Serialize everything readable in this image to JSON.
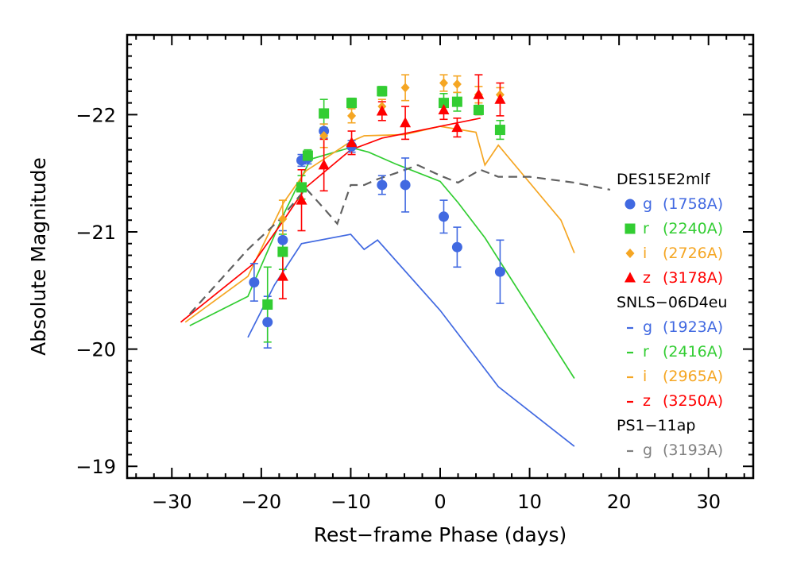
{
  "chart_data": {
    "type": "scatter",
    "xlabel": "Rest−frame Phase (days)",
    "ylabel": "Absolute Magnitude",
    "xlim": [
      -35,
      35
    ],
    "ylim": [
      -18.9,
      -22.68
    ],
    "y_inverted": true,
    "x_ticks": [
      -30,
      -20,
      -10,
      0,
      10,
      20,
      30
    ],
    "y_ticks": [
      -19,
      -20,
      -21,
      -22
    ],
    "x_tick_labels": [
      "−30",
      "−20",
      "−10",
      "0",
      "10",
      "20",
      "30"
    ],
    "y_tick_labels": [
      "−19",
      "−20",
      "−21",
      "−22"
    ],
    "grid": false,
    "legend_position": "right",
    "legend_groups": [
      {
        "title": "DES15E2mlf",
        "entries": [
          {
            "label": "g",
            "wavelength": "(1758A)",
            "color": "#4169e1",
            "marker": "circle"
          },
          {
            "label": "r",
            "wavelength": "(2240A)",
            "color": "#32cd32",
            "marker": "square"
          },
          {
            "label": "i",
            "wavelength": "(2726A)",
            "color": "#f5a623",
            "marker": "diamond"
          },
          {
            "label": "z",
            "wavelength": "(3178A)",
            "color": "#ff0000",
            "marker": "triangle"
          }
        ]
      },
      {
        "title": "SNLS−06D4eu",
        "entries": [
          {
            "label": "g",
            "wavelength": "(1923A)",
            "color": "#4169e1",
            "marker": "line"
          },
          {
            "label": "r",
            "wavelength": "(2416A)",
            "color": "#32cd32",
            "marker": "line"
          },
          {
            "label": "i",
            "wavelength": "(2965A)",
            "color": "#f5a623",
            "marker": "line"
          },
          {
            "label": "z",
            "wavelength": "(3250A)",
            "color": "#ff0000",
            "marker": "line"
          }
        ]
      },
      {
        "title": "PS1−11ap",
        "entries": [
          {
            "label": "g",
            "wavelength": "(3193A)",
            "color": "#808080",
            "marker": "dash"
          }
        ]
      }
    ],
    "points": [
      {
        "band": "g",
        "color": "#4169e1",
        "marker": "circle",
        "data": [
          {
            "x": -20.8,
            "y": -20.57,
            "err": 0.16
          },
          {
            "x": -19.3,
            "y": -20.23,
            "err": 0.22
          },
          {
            "x": -17.6,
            "y": -20.93,
            "err": 0.08
          },
          {
            "x": -15.5,
            "y": -21.61,
            "err": 0.05
          },
          {
            "x": -14.8,
            "y": -21.63,
            "err": 0.05
          },
          {
            "x": -13.0,
            "y": -21.86,
            "err": 0.06
          },
          {
            "x": -9.9,
            "y": -21.73,
            "err": 0.05
          },
          {
            "x": -6.5,
            "y": -21.4,
            "err": 0.08
          },
          {
            "x": -3.9,
            "y": -21.4,
            "err": 0.23
          },
          {
            "x": 0.4,
            "y": -21.13,
            "err": 0.14
          },
          {
            "x": 1.9,
            "y": -20.87,
            "err": 0.17
          },
          {
            "x": 6.7,
            "y": -20.66,
            "err": 0.27
          }
        ]
      },
      {
        "band": "r",
        "color": "#32cd32",
        "marker": "square",
        "data": [
          {
            "x": -19.3,
            "y": -20.38,
            "err": 0.32
          },
          {
            "x": -17.6,
            "y": -20.83,
            "err": 0.15
          },
          {
            "x": -15.5,
            "y": -21.38,
            "err": 0.1
          },
          {
            "x": -14.8,
            "y": -21.65,
            "err": 0.05
          },
          {
            "x": -13.0,
            "y": -22.01,
            "err": 0.12
          },
          {
            "x": -9.9,
            "y": -22.1,
            "err": 0.04
          },
          {
            "x": -6.5,
            "y": -22.2,
            "err": 0.04
          },
          {
            "x": 0.4,
            "y": -22.1,
            "err": 0.08
          },
          {
            "x": 1.9,
            "y": -22.11,
            "err": 0.08
          },
          {
            "x": 4.3,
            "y": -22.04,
            "err": 0.04
          },
          {
            "x": 6.7,
            "y": -21.87,
            "err": 0.08
          }
        ]
      },
      {
        "band": "i",
        "color": "#f5a623",
        "marker": "diamond",
        "data": [
          {
            "x": -17.6,
            "y": -21.11,
            "err": 0.16
          },
          {
            "x": -13.0,
            "y": -21.82,
            "err": 0.1
          },
          {
            "x": -9.9,
            "y": -21.99,
            "err": 0.06
          },
          {
            "x": -6.5,
            "y": -22.07,
            "err": 0.06
          },
          {
            "x": -3.9,
            "y": -22.23,
            "err": 0.11
          },
          {
            "x": 0.4,
            "y": -22.27,
            "err": 0.07
          },
          {
            "x": 1.9,
            "y": -22.26,
            "err": 0.07
          },
          {
            "x": 4.3,
            "y": -22.17,
            "err": 0.07
          },
          {
            "x": 6.7,
            "y": -22.17,
            "err": 0.06
          }
        ]
      },
      {
        "band": "z",
        "color": "#ff0000",
        "marker": "triangle",
        "data": [
          {
            "x": -17.6,
            "y": -20.62,
            "err": 0.19
          },
          {
            "x": -15.5,
            "y": -21.27,
            "err": 0.26
          },
          {
            "x": -13.0,
            "y": -21.57,
            "err": 0.22
          },
          {
            "x": -9.9,
            "y": -21.76,
            "err": 0.1
          },
          {
            "x": -6.5,
            "y": -22.03,
            "err": 0.08
          },
          {
            "x": -3.9,
            "y": -21.93,
            "err": 0.14
          },
          {
            "x": 0.4,
            "y": -22.04,
            "err": 0.08
          },
          {
            "x": 1.9,
            "y": -21.89,
            "err": 0.08
          },
          {
            "x": 4.3,
            "y": -22.17,
            "err": 0.17
          },
          {
            "x": 6.7,
            "y": -22.13,
            "err": 0.14
          }
        ]
      }
    ],
    "lines": [
      {
        "name": "SNLS−06D4eu g",
        "color": "#4169e1",
        "dash": false,
        "x": [
          -21.5,
          -18.5,
          -15.5,
          -10.0,
          -8.5,
          -7.0,
          0.0,
          2.0,
          6.5,
          15.0
        ],
        "y": [
          -20.1,
          -20.55,
          -20.9,
          -20.98,
          -20.85,
          -20.93,
          -20.33,
          -20.13,
          -19.68,
          -19.17
        ]
      },
      {
        "name": "SNLS−06D4eu r",
        "color": "#32cd32",
        "dash": false,
        "x": [
          -28.0,
          -21.5,
          -17.5,
          -14.5,
          -10.0,
          -8.0,
          -5.0,
          0.0,
          2.0,
          5.0,
          15.0
        ],
        "y": [
          -20.2,
          -20.45,
          -21.15,
          -21.62,
          -21.72,
          -21.68,
          -21.58,
          -21.43,
          -21.25,
          -20.95,
          -19.75
        ]
      },
      {
        "name": "SNLS−06D4eu i",
        "color": "#f5a623",
        "dash": false,
        "x": [
          -28.5,
          -21.5,
          -17.5,
          -15.0,
          -10.0,
          -8.5,
          -4.0,
          0.0,
          4.0,
          5.0,
          6.5,
          13.5,
          15.0
        ],
        "y": [
          -20.23,
          -20.62,
          -21.25,
          -21.52,
          -21.77,
          -21.82,
          -21.83,
          -21.9,
          -21.85,
          -21.57,
          -21.74,
          -21.1,
          -20.82
        ]
      },
      {
        "name": "SNLS−06D4eu z",
        "color": "#ff0000",
        "dash": false,
        "x": [
          -29.0,
          -21.0,
          -17.5,
          -15.0,
          -10.0,
          -6.5,
          0.0,
          4.5
        ],
        "y": [
          -20.23,
          -20.72,
          -21.1,
          -21.38,
          -21.7,
          -21.8,
          -21.9,
          -21.97
        ]
      },
      {
        "name": "PS1−11ap g",
        "color": "#606060",
        "dash": true,
        "x": [
          -28.0,
          -21.5,
          -18.0,
          -15.0,
          -13.0,
          -11.5,
          -10.0,
          -8.5,
          -7.0,
          -5.0,
          -2.5,
          0.0,
          2.0,
          4.5,
          6.5,
          10.0,
          15.0,
          19.0
        ],
        "y": [
          -20.3,
          -20.85,
          -21.1,
          -21.37,
          -21.2,
          -21.07,
          -21.4,
          -21.4,
          -21.45,
          -21.5,
          -21.57,
          -21.48,
          -21.42,
          -21.53,
          -21.47,
          -21.47,
          -21.42,
          -21.36
        ]
      }
    ]
  }
}
